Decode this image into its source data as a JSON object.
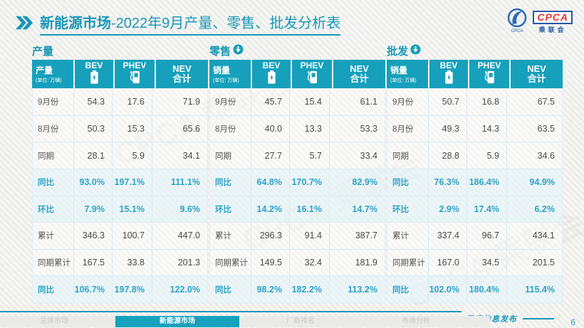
{
  "title": {
    "bold_part": "新能源市场",
    "rest_part": "-2022年9月产量、零售、批发分析表"
  },
  "logo": {
    "abbr": "CPCA",
    "name_cn": "乘联会",
    "emblem_sub": "CPCA"
  },
  "watermark": "CPCA 乘联会",
  "colors": {
    "accent": "#16A0BB",
    "highlight_text": "#2EA2C6",
    "logo_blue": "#2458A6",
    "logo_red": "#E8382F",
    "tab_inactive_text": "#C8C8C6"
  },
  "tables": [
    {
      "section_label": "产量",
      "header": {
        "title": "产量",
        "unit": "(单位: 万辆)",
        "col_bev": "BEV",
        "col_phev": "PHEV",
        "col_nev_line1": "NEV",
        "col_nev_line2": "合计"
      },
      "rows": [
        {
          "label": "9月份",
          "bev": "54.3",
          "phev": "17.6",
          "nev": "71.9",
          "highlight": false
        },
        {
          "label": "8月份",
          "bev": "50.3",
          "phev": "15.3",
          "nev": "65.6",
          "highlight": false
        },
        {
          "label": "同期",
          "bev": "28.1",
          "phev": "5.9",
          "nev": "34.1",
          "highlight": false
        },
        {
          "label": "同比",
          "bev": "93.0%",
          "phev": "197.1%",
          "nev": "111.1%",
          "highlight": true
        },
        {
          "label": "环比",
          "bev": "7.9%",
          "phev": "15.1%",
          "nev": "9.6%",
          "highlight": true
        },
        {
          "label": "累计",
          "bev": "346.3",
          "phev": "100.7",
          "nev": "447.0",
          "highlight": false
        },
        {
          "label": "同期累计",
          "bev": "167.5",
          "phev": "33.8",
          "nev": "201.3",
          "highlight": false
        },
        {
          "label": "同比",
          "bev": "106.7%",
          "phev": "197.8%",
          "nev": "122.0%",
          "highlight": true
        }
      ]
    },
    {
      "section_label": "零售",
      "header": {
        "title": "销量",
        "unit": "(单位: 万辆)",
        "col_bev": "BEV",
        "col_phev": "PHEV",
        "col_nev_line1": "NEV",
        "col_nev_line2": "合计"
      },
      "rows": [
        {
          "label": "9月份",
          "bev": "45.7",
          "phev": "15.4",
          "nev": "61.1",
          "highlight": false
        },
        {
          "label": "8月份",
          "bev": "40.0",
          "phev": "13.3",
          "nev": "53.3",
          "highlight": false
        },
        {
          "label": "同期",
          "bev": "27.7",
          "phev": "5.7",
          "nev": "33.4",
          "highlight": false
        },
        {
          "label": "同比",
          "bev": "64.8%",
          "phev": "170.7%",
          "nev": "82.9%",
          "highlight": true
        },
        {
          "label": "环比",
          "bev": "14.2%",
          "phev": "16.1%",
          "nev": "14.7%",
          "highlight": true
        },
        {
          "label": "累计",
          "bev": "296.3",
          "phev": "91.4",
          "nev": "387.7",
          "highlight": false
        },
        {
          "label": "同期累计",
          "bev": "149.5",
          "phev": "32.4",
          "nev": "181.9",
          "highlight": false
        },
        {
          "label": "同比",
          "bev": "98.2%",
          "phev": "182.2%",
          "nev": "113.2%",
          "highlight": true
        }
      ]
    },
    {
      "section_label": "批发",
      "header": {
        "title": "销量",
        "unit": "(单位: 万辆)",
        "col_bev": "BEV",
        "col_phev": "PHEV",
        "col_nev_line1": "NEV",
        "col_nev_line2": "合计"
      },
      "rows": [
        {
          "label": "9月份",
          "bev": "50.7",
          "phev": "16.8",
          "nev": "67.5",
          "highlight": false
        },
        {
          "label": "8月份",
          "bev": "49.3",
          "phev": "14.3",
          "nev": "63.5",
          "highlight": false
        },
        {
          "label": "同期",
          "bev": "28.8",
          "phev": "5.9",
          "nev": "34.6",
          "highlight": false
        },
        {
          "label": "同比",
          "bev": "76.3%",
          "phev": "186.4%",
          "nev": "94.9%",
          "highlight": true
        },
        {
          "label": "环比",
          "bev": "2.9%",
          "phev": "17.4%",
          "nev": "6.2%",
          "highlight": true
        },
        {
          "label": "累计",
          "bev": "337.4",
          "phev": "96.7",
          "nev": "434.1",
          "highlight": false
        },
        {
          "label": "同期累计",
          "bev": "167.0",
          "phev": "34.5",
          "nev": "201.5",
          "highlight": false
        },
        {
          "label": "同比",
          "bev": "102.0%",
          "phev": "180.4%",
          "nev": "115.4%",
          "highlight": true
        }
      ]
    }
  ],
  "footer": {
    "tabs": [
      {
        "label": "总体市场",
        "active": false
      },
      {
        "label": "新能源市场",
        "active": true
      },
      {
        "label": "厂商排名",
        "active": false
      },
      {
        "label": "市场分析",
        "active": false
      }
    ],
    "release_label": "月度信息发布",
    "page_number": "6"
  }
}
